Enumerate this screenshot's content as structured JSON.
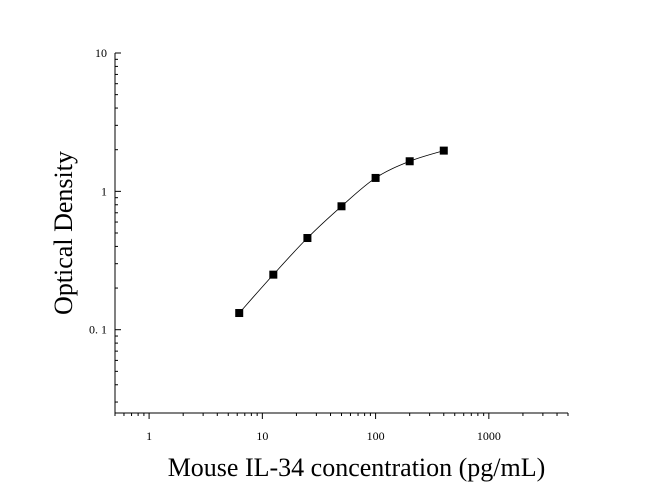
{
  "chart_data": {
    "type": "scatter",
    "xlabel": "Mouse IL-34 concentration (pg/mL)",
    "ylabel": "Optical Density",
    "x_scale": "log",
    "y_scale": "log",
    "xlim": [
      0.5,
      5000
    ],
    "ylim": [
      0.025,
      10
    ],
    "x_ticks": [
      1,
      10,
      100,
      1000
    ],
    "x_tick_labels": [
      "1",
      "10",
      "100",
      "1000"
    ],
    "y_ticks": [
      0.1,
      1,
      10
    ],
    "y_tick_labels": [
      "0. 1",
      "1",
      "10"
    ],
    "grid": false,
    "series": [
      {
        "marker": "square",
        "fit_line": true,
        "x": [
          6.25,
          12.5,
          25,
          50,
          100,
          200,
          400
        ],
        "y": [
          0.132,
          0.25,
          0.46,
          0.78,
          1.25,
          1.65,
          1.97
        ]
      }
    ]
  }
}
